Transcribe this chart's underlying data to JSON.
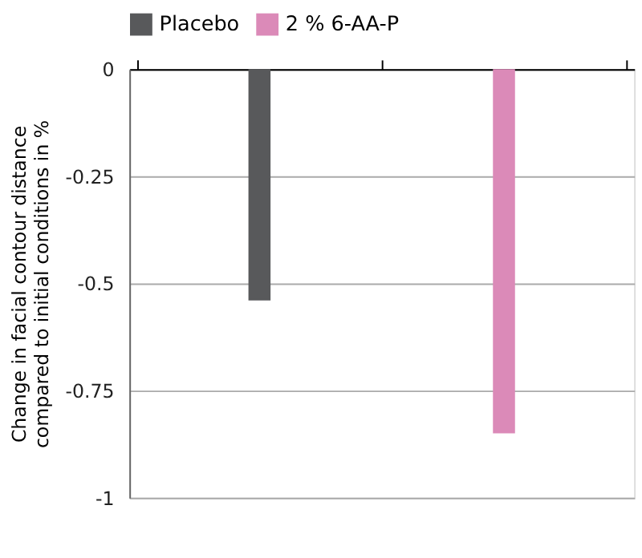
{
  "chart_data": {
    "type": "bar",
    "ylabel": "Change in facial contour distance\ncompared to initial conditions in %",
    "categories": [
      null,
      null
    ],
    "series": [
      {
        "name": "Placebo",
        "color": "#58595b",
        "values": [
          -0.54,
          null
        ]
      },
      {
        "name": "2 % 6-AA-P",
        "color": "#db8ab8",
        "values": [
          null,
          -0.85
        ]
      }
    ],
    "ylim": [
      -1,
      0
    ],
    "yticks": [
      0,
      -0.25,
      -0.5,
      -0.75,
      -1
    ],
    "grid": "y",
    "legend": "top left",
    "tick_labels": "y"
  }
}
